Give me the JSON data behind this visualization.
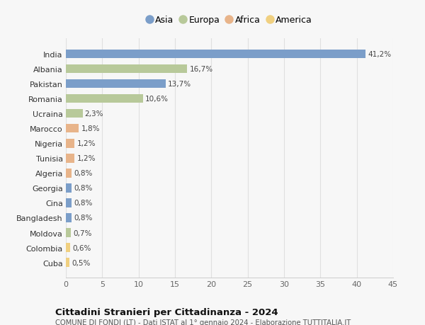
{
  "countries": [
    "India",
    "Albania",
    "Pakistan",
    "Romania",
    "Ucraina",
    "Marocco",
    "Nigeria",
    "Tunisia",
    "Algeria",
    "Georgia",
    "Cina",
    "Bangladesh",
    "Moldova",
    "Colombia",
    "Cuba"
  ],
  "values": [
    41.2,
    16.7,
    13.7,
    10.6,
    2.3,
    1.8,
    1.2,
    1.2,
    0.8,
    0.8,
    0.8,
    0.8,
    0.7,
    0.6,
    0.5
  ],
  "labels": [
    "41,2%",
    "16,7%",
    "13,7%",
    "10,6%",
    "2,3%",
    "1,8%",
    "1,2%",
    "1,2%",
    "0,8%",
    "0,8%",
    "0,8%",
    "0,8%",
    "0,7%",
    "0,6%",
    "0,5%"
  ],
  "continents": [
    "Asia",
    "Europa",
    "Asia",
    "Europa",
    "Europa",
    "Africa",
    "Africa",
    "Africa",
    "Africa",
    "Asia",
    "Asia",
    "Asia",
    "Europa",
    "America",
    "America"
  ],
  "colors": {
    "Asia": "#7b9ec9",
    "Europa": "#b8c99a",
    "Africa": "#e8b48a",
    "America": "#f0d080"
  },
  "legend_order": [
    "Asia",
    "Europa",
    "Africa",
    "America"
  ],
  "title": "Cittadini Stranieri per Cittadinanza - 2024",
  "subtitle": "COMUNE DI FONDI (LT) - Dati ISTAT al 1° gennaio 2024 - Elaborazione TUTTITALIA.IT",
  "xlim": [
    0,
    45
  ],
  "xticks": [
    0,
    5,
    10,
    15,
    20,
    25,
    30,
    35,
    40,
    45
  ],
  "background_color": "#f7f7f7",
  "grid_color": "#e0e0e0",
  "bar_height": 0.6
}
